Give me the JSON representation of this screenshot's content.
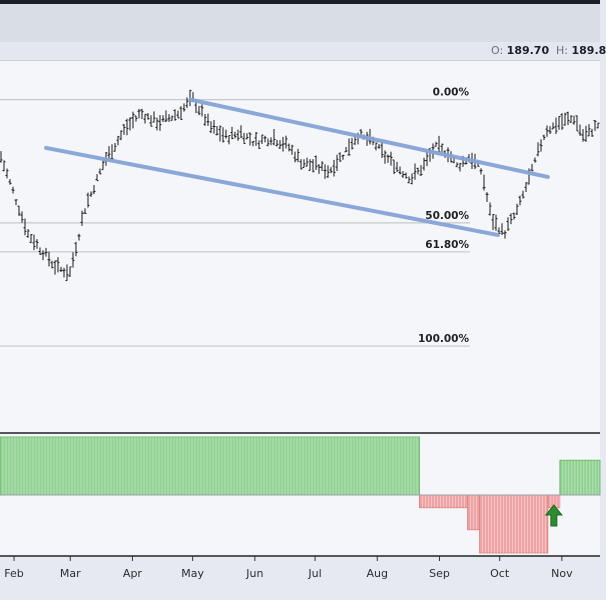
{
  "ohlc": {
    "open_label": "O:",
    "open_value": "189.70",
    "high_label": "H:",
    "high_value": "189.8"
  },
  "colors": {
    "price_bar": "#1a1a1a",
    "channel": "#86a3d7",
    "fib_line": "#c8c8c8",
    "positive_histogram": "#8fd18f",
    "negative_histogram": "#f0a3a3",
    "signal_arrow": "#2e8b2e"
  },
  "icons": {
    "signal": "up-arrow-icon"
  },
  "chart_data": [
    {
      "type": "bar",
      "subtype": "ohlc-price",
      "x_axis": {
        "labels": [
          "Feb",
          "Mar",
          "Apr",
          "May",
          "Jun",
          "Jul",
          "Aug",
          "Sep",
          "Oct",
          "Nov"
        ]
      },
      "grid": false,
      "price_path": [
        [
          "Jan 25",
          115
        ],
        [
          "Feb 8",
          82
        ],
        [
          "Feb 22",
          68
        ],
        [
          "Mar 1",
          66
        ],
        [
          "Mar 8",
          92
        ],
        [
          "Mar 18",
          112
        ],
        [
          "Mar 28",
          125
        ],
        [
          "Apr 5",
          132
        ],
        [
          "Apr 14",
          128
        ],
        [
          "Apr 24",
          132
        ],
        [
          "May 1",
          138
        ],
        [
          "May 10",
          126
        ],
        [
          "May 18",
          122
        ],
        [
          "May 25",
          124
        ],
        [
          "Jun 1",
          120
        ],
        [
          "Jun 10",
          122
        ],
        [
          "Jun 18",
          118
        ],
        [
          "Jun 24",
          112
        ],
        [
          "Jul 1",
          110
        ],
        [
          "Jul 8",
          108
        ],
        [
          "Jul 14",
          114
        ],
        [
          "Jul 22",
          123
        ],
        [
          "Jul 30",
          120
        ],
        [
          "Aug 5",
          114
        ],
        [
          "Aug 12",
          109
        ],
        [
          "Aug 18",
          105
        ],
        [
          "Aug 24",
          110
        ],
        [
          "Aug 30",
          118
        ],
        [
          "Sep 5",
          116
        ],
        [
          "Sep 10",
          110
        ],
        [
          "Sep 16",
          114
        ],
        [
          "Sep 22",
          108
        ],
        [
          "Sep 27",
          88
        ],
        [
          "Oct 3",
          82
        ],
        [
          "Oct 10",
          92
        ],
        [
          "Oct 17",
          108
        ],
        [
          "Oct 24",
          125
        ],
        [
          "Oct 31",
          128
        ],
        [
          "Nov 7",
          130
        ],
        [
          "Nov 12",
          122
        ],
        [
          "Nov 20",
          128
        ]
      ],
      "trend_channel": {
        "upper": [
          [
            "Apr 30",
            138
          ],
          [
            "Oct 25",
            106
          ]
        ],
        "lower": [
          [
            "Feb 17",
            118
          ],
          [
            "Sep 30",
            82
          ]
        ]
      },
      "fibonacci_levels": [
        {
          "label": "0.00%",
          "value": 138
        },
        {
          "label": "50.00%",
          "value": 87
        },
        {
          "label": "61.80%",
          "value": 75
        },
        {
          "label": "100.00%",
          "value": 36
        }
      ]
    },
    {
      "type": "bar",
      "subtype": "histogram",
      "series": [
        {
          "sign": "positive",
          "start": "Jan 25",
          "end": "Aug 22",
          "value": 1.0
        },
        {
          "sign": "negative",
          "start": "Aug 22",
          "end": "Sep 15",
          "value": -0.22
        },
        {
          "sign": "negative",
          "start": "Sep 15",
          "end": "Sep 21",
          "value": -0.6
        },
        {
          "sign": "negative",
          "start": "Sep 21",
          "end": "Oct 25",
          "value": -1.0
        },
        {
          "sign": "negative",
          "start": "Oct 25",
          "end": "Oct 31",
          "value": -0.22
        },
        {
          "sign": "positive",
          "start": "Oct 31",
          "end": "Nov 20",
          "value": 0.6
        }
      ],
      "annotations": [
        {
          "type": "up-arrow",
          "date": "Oct 28"
        }
      ]
    }
  ]
}
